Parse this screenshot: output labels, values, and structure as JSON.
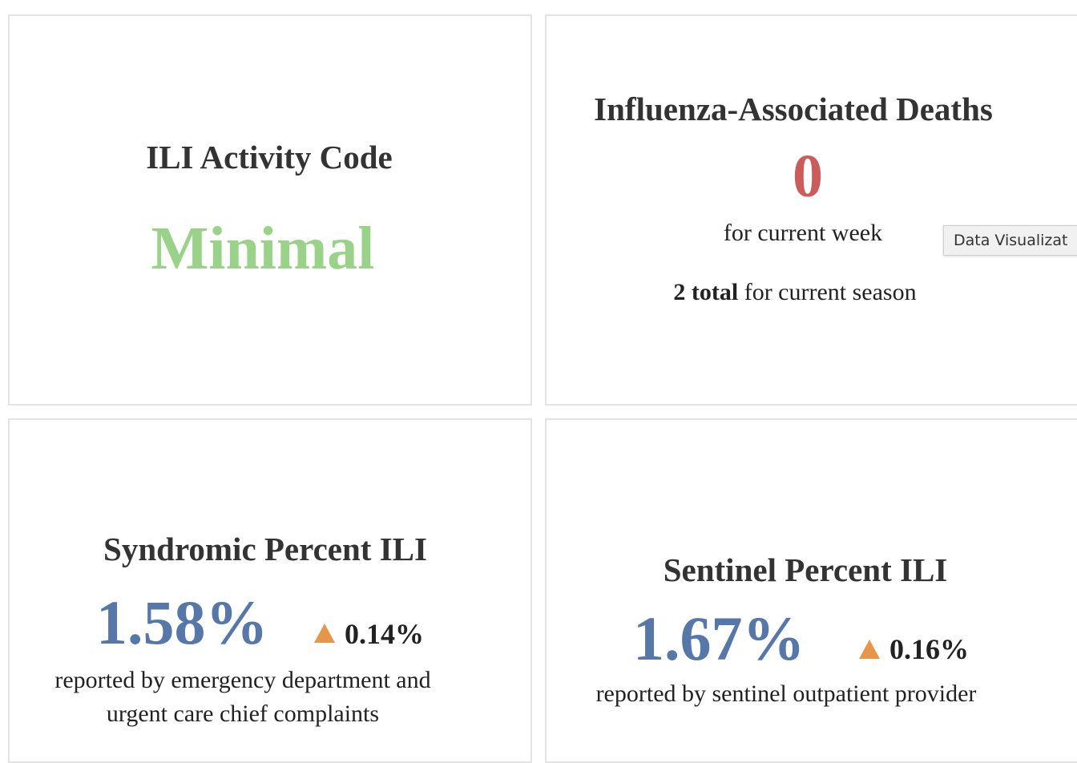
{
  "cards": [
    {
      "title": "ILI Activity Code",
      "value": "Minimal"
    },
    {
      "title": "Influenza-Associated Deaths",
      "value": 0,
      "caption": "for current week",
      "season_total": "2 total",
      "season_caption": "for current season"
    },
    {
      "title": "Syndromic Percent ILI",
      "value": "1.58%",
      "change": "0.14%",
      "caption": "reported by emergency department and urgent care chief complaints"
    },
    {
      "title": "Sentinel Percent ILI",
      "value": "1.67%",
      "change": "0.16%",
      "caption": "reported by sentinel outpatient provider"
    }
  ],
  "tooltip": "Data Visualizat"
}
